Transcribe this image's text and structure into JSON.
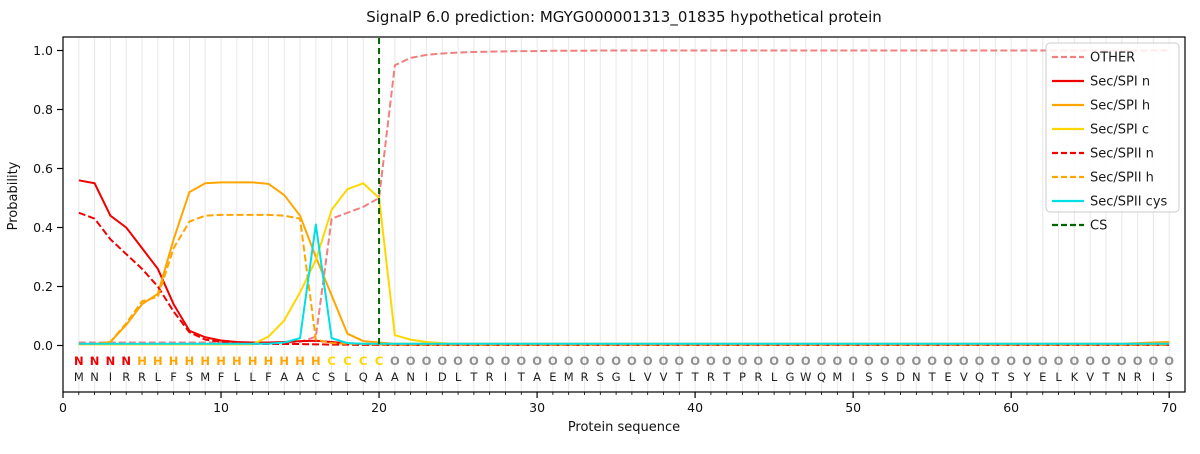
{
  "title": "SignalP 6.0 prediction: MGYG000001313_01835 hypothetical protein",
  "chart_data": {
    "type": "line",
    "title": "SignalP 6.0 prediction: MGYG000001313_01835 hypothetical protein",
    "xlabel": "Protein sequence",
    "ylabel": "Probability",
    "xlim": [
      0,
      71
    ],
    "ylim": [
      0.0,
      1.05
    ],
    "x_ticks": [
      0,
      10,
      20,
      30,
      40,
      50,
      60,
      70
    ],
    "y_ticks": [
      0.0,
      0.2,
      0.4,
      0.6,
      0.8,
      1.0
    ],
    "grid": "vertical-per-residue",
    "legend_position": "upper-right",
    "x_start": 1,
    "series": [
      {
        "name": "OTHER",
        "color": "#f08080",
        "dash": "dashed",
        "values": [
          0.01,
          0.01,
          0.01,
          0.01,
          0.01,
          0.01,
          0.01,
          0.01,
          0.01,
          0.01,
          0.01,
          0.01,
          0.01,
          0.01,
          0.012,
          0.03,
          0.43,
          0.45,
          0.47,
          0.5,
          0.95,
          0.975,
          0.985,
          0.99,
          0.993,
          0.995,
          0.996,
          0.997,
          0.998,
          0.998,
          0.999,
          0.999,
          0.999,
          1.0,
          1.0,
          1.0,
          1.0,
          1.0,
          1.0,
          1.0,
          1.0,
          1.0,
          1.0,
          1.0,
          1.0,
          1.0,
          1.0,
          1.0,
          1.0,
          1.0,
          1.0,
          1.0,
          1.0,
          1.0,
          1.0,
          1.0,
          1.0,
          1.0,
          1.0,
          1.0,
          1.0,
          1.0,
          1.0,
          1.0,
          1.0,
          1.0,
          1.0,
          1.0,
          1.0,
          1.0
        ]
      },
      {
        "name": "Sec/SPI n",
        "color": "#f00000",
        "dash": "solid",
        "values": [
          0.56,
          0.55,
          0.44,
          0.4,
          0.33,
          0.26,
          0.14,
          0.05,
          0.028,
          0.017,
          0.012,
          0.01,
          0.01,
          0.012,
          0.015,
          0.016,
          0.012,
          0.007,
          0.005,
          0.004,
          0.003,
          0.003,
          0.003,
          0.003,
          0.003,
          0.003,
          0.003,
          0.003,
          0.003,
          0.003,
          0.003,
          0.003,
          0.003,
          0.003,
          0.003,
          0.003,
          0.003,
          0.003,
          0.003,
          0.003,
          0.003,
          0.003,
          0.003,
          0.003,
          0.003,
          0.003,
          0.003,
          0.003,
          0.003,
          0.003,
          0.003,
          0.003,
          0.003,
          0.003,
          0.003,
          0.003,
          0.003,
          0.003,
          0.003,
          0.003,
          0.003,
          0.003,
          0.003,
          0.003,
          0.003,
          0.003,
          0.003,
          0.003,
          0.003,
          0.003
        ]
      },
      {
        "name": "Sec/SPI h",
        "color": "#ffa500",
        "dash": "solid",
        "values": [
          0.005,
          0.005,
          0.012,
          0.07,
          0.14,
          0.175,
          0.36,
          0.52,
          0.55,
          0.553,
          0.553,
          0.553,
          0.548,
          0.51,
          0.44,
          0.3,
          0.17,
          0.04,
          0.015,
          0.01,
          0.006,
          0.006,
          0.006,
          0.006,
          0.006,
          0.006,
          0.006,
          0.006,
          0.006,
          0.006,
          0.006,
          0.006,
          0.006,
          0.006,
          0.006,
          0.006,
          0.006,
          0.006,
          0.006,
          0.006,
          0.006,
          0.006,
          0.006,
          0.006,
          0.006,
          0.006,
          0.006,
          0.006,
          0.006,
          0.006,
          0.006,
          0.006,
          0.006,
          0.006,
          0.006,
          0.006,
          0.006,
          0.006,
          0.006,
          0.006,
          0.006,
          0.006,
          0.006,
          0.006,
          0.006,
          0.006,
          0.006,
          0.008,
          0.01,
          0.012
        ]
      },
      {
        "name": "Sec/SPI c",
        "color": "#ffd700",
        "dash": "solid",
        "values": [
          0.004,
          0.004,
          0.004,
          0.004,
          0.004,
          0.004,
          0.004,
          0.004,
          0.004,
          0.004,
          0.004,
          0.004,
          0.03,
          0.085,
          0.18,
          0.29,
          0.46,
          0.53,
          0.55,
          0.5,
          0.035,
          0.02,
          0.012,
          0.008,
          0.005,
          0.005,
          0.005,
          0.005,
          0.005,
          0.005,
          0.005,
          0.005,
          0.005,
          0.005,
          0.005,
          0.005,
          0.005,
          0.005,
          0.005,
          0.005,
          0.005,
          0.005,
          0.005,
          0.005,
          0.005,
          0.005,
          0.005,
          0.005,
          0.005,
          0.005,
          0.005,
          0.005,
          0.005,
          0.005,
          0.005,
          0.005,
          0.005,
          0.005,
          0.005,
          0.005,
          0.005,
          0.005,
          0.005,
          0.005,
          0.005,
          0.005,
          0.005,
          0.005,
          0.005,
          0.005
        ]
      },
      {
        "name": "Sec/SPII n",
        "color": "#f00000",
        "dash": "dashed",
        "values": [
          0.45,
          0.43,
          0.36,
          0.31,
          0.26,
          0.2,
          0.115,
          0.045,
          0.02,
          0.012,
          0.008,
          0.006,
          0.005,
          0.005,
          0.005,
          0.004,
          0.003,
          0.003,
          0.002,
          0.002,
          0.002,
          0.002,
          0.002,
          0.002,
          0.002,
          0.002,
          0.002,
          0.002,
          0.002,
          0.002,
          0.002,
          0.002,
          0.002,
          0.002,
          0.002,
          0.002,
          0.002,
          0.002,
          0.002,
          0.002,
          0.002,
          0.002,
          0.002,
          0.002,
          0.002,
          0.002,
          0.002,
          0.002,
          0.002,
          0.002,
          0.002,
          0.002,
          0.002,
          0.002,
          0.002,
          0.002,
          0.002,
          0.002,
          0.002,
          0.002,
          0.002,
          0.002,
          0.002,
          0.002,
          0.002,
          0.002,
          0.002,
          0.002,
          0.002,
          0.002
        ]
      },
      {
        "name": "Sec/SPII h",
        "color": "#ffa500",
        "dash": "dashed",
        "values": [
          0.005,
          0.005,
          0.012,
          0.075,
          0.15,
          0.165,
          0.33,
          0.42,
          0.44,
          0.443,
          0.443,
          0.443,
          0.443,
          0.44,
          0.43,
          0.02,
          0.008,
          0.006,
          0.005,
          0.004,
          0.003,
          0.003,
          0.003,
          0.003,
          0.003,
          0.003,
          0.003,
          0.003,
          0.003,
          0.003,
          0.003,
          0.003,
          0.003,
          0.003,
          0.003,
          0.003,
          0.003,
          0.003,
          0.003,
          0.003,
          0.003,
          0.003,
          0.003,
          0.003,
          0.003,
          0.003,
          0.003,
          0.003,
          0.003,
          0.003,
          0.003,
          0.003,
          0.003,
          0.003,
          0.003,
          0.003,
          0.003,
          0.003,
          0.003,
          0.003,
          0.003,
          0.003,
          0.003,
          0.003,
          0.003,
          0.003,
          0.003,
          0.003,
          0.003,
          0.003
        ]
      },
      {
        "name": "Sec/SPII cys",
        "color": "#00dfe4",
        "dash": "solid",
        "values": [
          0.006,
          0.006,
          0.006,
          0.006,
          0.006,
          0.006,
          0.006,
          0.006,
          0.006,
          0.006,
          0.006,
          0.006,
          0.006,
          0.01,
          0.025,
          0.41,
          0.025,
          0.008,
          0.006,
          0.006,
          0.006,
          0.006,
          0.006,
          0.006,
          0.006,
          0.006,
          0.006,
          0.006,
          0.006,
          0.006,
          0.006,
          0.006,
          0.006,
          0.006,
          0.006,
          0.006,
          0.006,
          0.006,
          0.006,
          0.006,
          0.006,
          0.006,
          0.006,
          0.006,
          0.006,
          0.006,
          0.006,
          0.006,
          0.006,
          0.006,
          0.006,
          0.006,
          0.006,
          0.006,
          0.006,
          0.006,
          0.006,
          0.006,
          0.006,
          0.006,
          0.006,
          0.006,
          0.006,
          0.006,
          0.006,
          0.006,
          0.006,
          0.006,
          0.006,
          0.006
        ]
      }
    ],
    "cs_line": {
      "name": "CS",
      "color": "#006400",
      "dash": "dashed",
      "x": 20
    },
    "sequence": "MNIRRLFSMFLLFAACSLQAANIDLTRITAEMRSGLVVTTRTPRLGWQMISSDNTEVQTSYELKVTNRIS",
    "regions": "NNNNHHHHHHHHHHHHCCCCOOOOOOOOOOOOOOOOOOOOOOOOOOOOOOOOOOOOOOOOOOOOOOOOOO",
    "region_colors": {
      "N": "#f00000",
      "H": "#ffa500",
      "C": "#ffd700",
      "O": "#909090"
    },
    "sequence_text_color": "#212121",
    "grid_color": "#e8e8e8",
    "axis_color": "#000000"
  }
}
